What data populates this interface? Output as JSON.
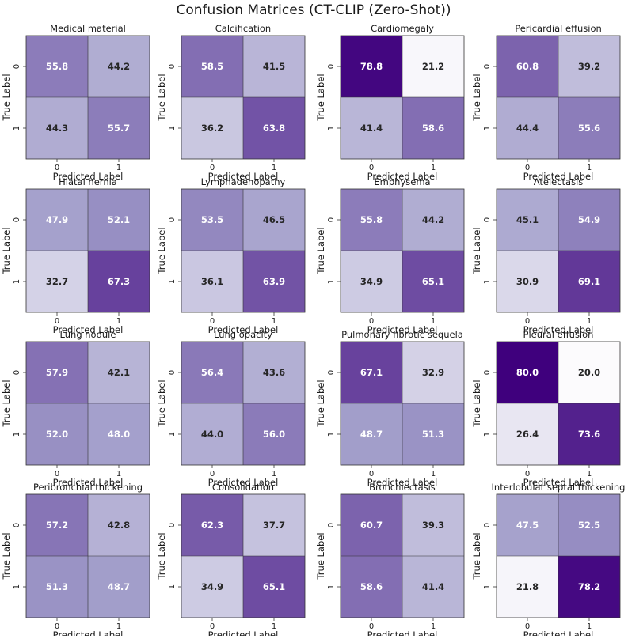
{
  "title": "Confusion Matrices (CT-CLIP (Zero-Shot))",
  "colormap": {
    "low": "#fcfbfd",
    "mid": "#9e9ac8",
    "high": "#3f007d"
  },
  "chart_data": {
    "type": "heatmap",
    "title": "Confusion Matrices (CT-CLIP (Zero-Shot))",
    "xlabel": "Predicted Label",
    "ylabel": "True Label",
    "x_ticks": [
      "0",
      "1"
    ],
    "y_ticks": [
      "0",
      "1"
    ],
    "grid": "4x4 panels",
    "matrices": [
      {
        "name": "Medical material",
        "values": [
          [
            55.8,
            44.2
          ],
          [
            44.3,
            55.7
          ]
        ]
      },
      {
        "name": "Calcification",
        "values": [
          [
            58.5,
            41.5
          ],
          [
            36.2,
            63.8
          ]
        ]
      },
      {
        "name": "Cardiomegaly",
        "values": [
          [
            78.8,
            21.2
          ],
          [
            41.4,
            58.6
          ]
        ]
      },
      {
        "name": "Pericardial effusion",
        "values": [
          [
            60.8,
            39.2
          ],
          [
            44.4,
            55.6
          ]
        ]
      },
      {
        "name": "Hiatal hernia",
        "values": [
          [
            47.9,
            52.1
          ],
          [
            32.7,
            67.3
          ]
        ]
      },
      {
        "name": "Lymphadenopathy",
        "values": [
          [
            53.5,
            46.5
          ],
          [
            36.1,
            63.9
          ]
        ]
      },
      {
        "name": "Emphysema",
        "values": [
          [
            55.8,
            44.2
          ],
          [
            34.9,
            65.1
          ]
        ]
      },
      {
        "name": "Atelectasis",
        "values": [
          [
            45.1,
            54.9
          ],
          [
            30.9,
            69.1
          ]
        ]
      },
      {
        "name": "Lung nodule",
        "values": [
          [
            57.9,
            42.1
          ],
          [
            52.0,
            48.0
          ]
        ]
      },
      {
        "name": "Lung opacity",
        "values": [
          [
            56.4,
            43.6
          ],
          [
            44.0,
            56.0
          ]
        ]
      },
      {
        "name": "Pulmonary fibrotic sequela",
        "values": [
          [
            67.1,
            32.9
          ],
          [
            48.7,
            51.3
          ]
        ]
      },
      {
        "name": "Pleural effusion",
        "values": [
          [
            80.0,
            20.0
          ],
          [
            26.4,
            73.6
          ]
        ]
      },
      {
        "name": "Peribronchial thickening",
        "values": [
          [
            57.2,
            42.8
          ],
          [
            51.3,
            48.7
          ]
        ]
      },
      {
        "name": "Consolidation",
        "values": [
          [
            62.3,
            37.7
          ],
          [
            34.9,
            65.1
          ]
        ]
      },
      {
        "name": "Bronchiectasis",
        "values": [
          [
            60.7,
            39.3
          ],
          [
            58.6,
            41.4
          ]
        ]
      },
      {
        "name": "Interlobular septal thickening",
        "values": [
          [
            47.5,
            52.5
          ],
          [
            21.8,
            78.2
          ]
        ]
      }
    ]
  }
}
